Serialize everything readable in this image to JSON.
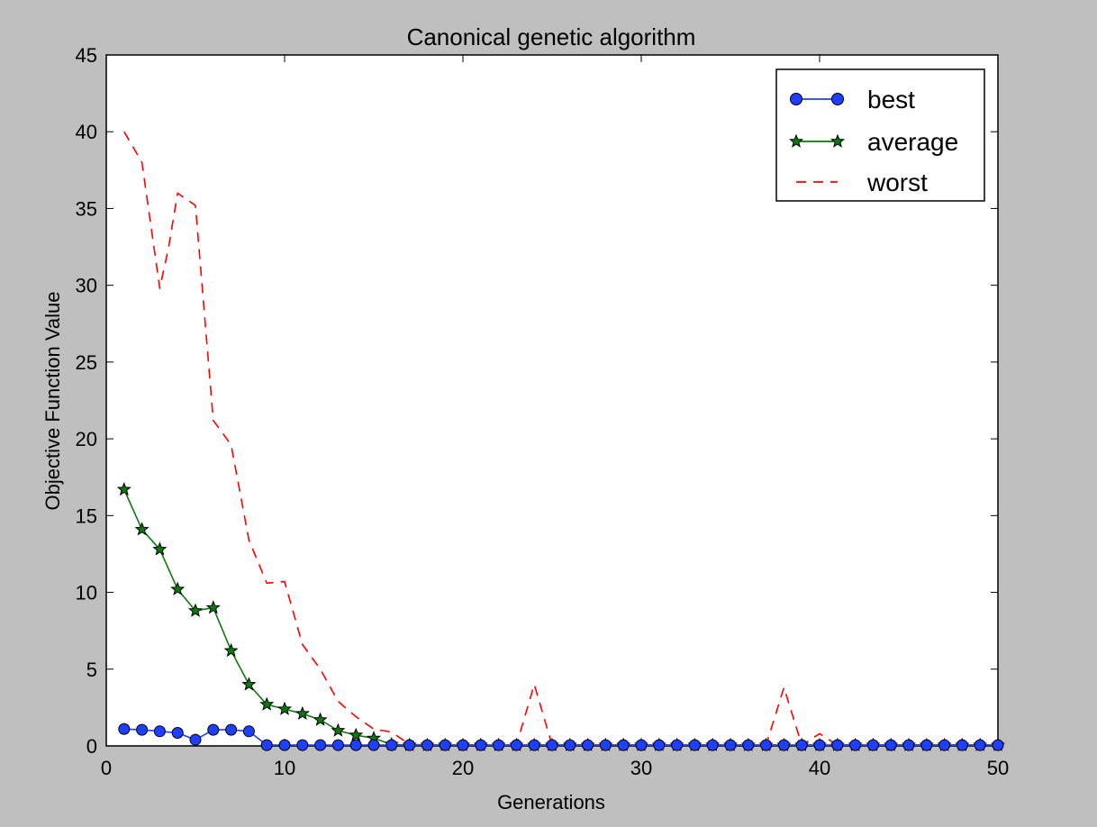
{
  "chart_data": {
    "type": "line",
    "title": "Canonical genetic algorithm",
    "xlabel": "Generations",
    "ylabel": "Objective Function Value",
    "xlim": [
      0,
      50
    ],
    "ylim": [
      0,
      45
    ],
    "xticks": [
      0,
      10,
      20,
      30,
      40,
      50
    ],
    "yticks": [
      0,
      5,
      10,
      15,
      20,
      25,
      30,
      35,
      40,
      45
    ],
    "grid": false,
    "legend_position": "top-right",
    "series": [
      {
        "name": "best",
        "color": "#1f3fff",
        "style": "solid",
        "marker": "circle",
        "x": [
          1,
          2,
          3,
          4,
          5,
          6,
          7,
          8,
          9,
          10,
          11,
          12,
          13,
          14,
          15,
          16,
          17,
          18,
          19,
          20,
          21,
          22,
          23,
          24,
          25,
          26,
          27,
          28,
          29,
          30,
          31,
          32,
          33,
          34,
          35,
          36,
          37,
          38,
          39,
          40,
          41,
          42,
          43,
          44,
          45,
          46,
          47,
          48,
          49,
          50
        ],
        "y": [
          1.1,
          1.05,
          0.95,
          0.85,
          0.4,
          1.05,
          1.05,
          0.95,
          0.05,
          0.05,
          0.05,
          0.05,
          0.05,
          0.05,
          0.05,
          0.05,
          0.05,
          0.05,
          0.05,
          0.05,
          0.05,
          0.05,
          0.05,
          0.05,
          0.05,
          0.05,
          0.05,
          0.05,
          0.05,
          0.05,
          0.05,
          0.05,
          0.05,
          0.05,
          0.05,
          0.05,
          0.05,
          0.05,
          0.05,
          0.05,
          0.05,
          0.05,
          0.05,
          0.05,
          0.05,
          0.05,
          0.05,
          0.05,
          0.05,
          0.05
        ]
      },
      {
        "name": "average",
        "color": "#0a7a0a",
        "style": "solid",
        "marker": "star",
        "x": [
          1,
          2,
          3,
          4,
          5,
          6,
          7,
          8,
          9,
          10,
          11,
          12,
          13,
          14,
          15,
          16,
          17,
          18,
          19,
          20,
          21,
          22,
          23,
          24,
          25,
          26,
          27,
          28,
          29,
          30,
          31,
          32,
          33,
          34,
          35,
          36,
          37,
          38,
          39,
          40,
          41,
          42,
          43,
          44,
          45,
          46,
          47,
          48,
          49,
          50
        ],
        "y": [
          16.7,
          14.1,
          12.8,
          10.2,
          8.8,
          9.0,
          6.2,
          4.0,
          2.7,
          2.4,
          2.1,
          1.7,
          1.0,
          0.7,
          0.5,
          0.1,
          0.05,
          0.05,
          0.05,
          0.05,
          0.05,
          0.05,
          0.05,
          0.05,
          0.05,
          0.05,
          0.05,
          0.05,
          0.05,
          0.05,
          0.05,
          0.05,
          0.05,
          0.05,
          0.05,
          0.05,
          0.05,
          0.05,
          0.05,
          0.05,
          0.05,
          0.05,
          0.05,
          0.05,
          0.05,
          0.05,
          0.05,
          0.05,
          0.05,
          0.05
        ]
      },
      {
        "name": "worst",
        "color": "#ff0000",
        "style": "dashed",
        "marker": "none",
        "x": [
          1,
          2,
          3,
          3.5,
          4,
          5,
          6,
          7,
          8,
          9,
          10,
          11,
          12,
          13,
          14,
          15,
          16,
          17,
          18,
          19,
          20,
          21,
          22,
          23,
          24,
          25,
          26,
          27,
          28,
          29,
          30,
          31,
          32,
          33,
          34,
          35,
          36,
          37,
          38,
          39,
          40,
          41,
          42,
          43,
          44,
          45,
          46,
          47,
          48,
          49,
          50
        ],
        "y": [
          40.0,
          38.0,
          29.8,
          32.5,
          36.0,
          35.2,
          21.2,
          19.6,
          13.4,
          10.6,
          10.7,
          6.6,
          5.0,
          2.9,
          1.9,
          1.1,
          0.9,
          0.1,
          0.05,
          0.05,
          0.05,
          0.05,
          0.05,
          0.05,
          4.0,
          0.05,
          0.05,
          0.05,
          0.05,
          0.05,
          0.05,
          0.05,
          0.05,
          0.05,
          0.05,
          0.05,
          0.05,
          0.05,
          3.8,
          0.05,
          0.8,
          0.05,
          0.05,
          0.05,
          0.05,
          0.05,
          0.05,
          0.05,
          0.05,
          0.05,
          0.05
        ]
      }
    ]
  }
}
